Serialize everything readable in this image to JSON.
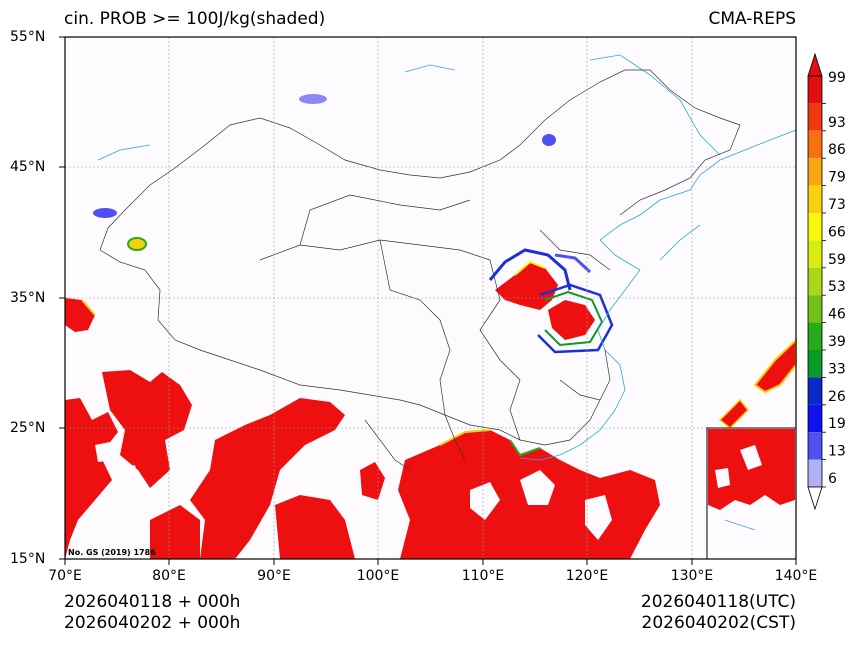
{
  "title_left": "cin. PROB >= 100J/kg(shaded)",
  "title_right": "CMA-REPS",
  "lat_labels": [
    "55°N",
    "45°N",
    "35°N",
    "25°N",
    "15°N"
  ],
  "lon_labels": [
    "70°E",
    "80°E",
    "90°E",
    "100°E",
    "110°E",
    "120°E",
    "130°E",
    "140°E"
  ],
  "map_note": "No. GS (2019) 1786",
  "colorbar": {
    "levels": [
      "6",
      "13",
      "19",
      "26",
      "33",
      "39",
      "46",
      "53",
      "59",
      "66",
      "73",
      "79",
      "86",
      "93",
      "99"
    ],
    "colors": [
      "#b0b0f8",
      "#5050f0",
      "#1010f0",
      "#0a2ac8",
      "#0a9a28",
      "#2aaa18",
      "#72c018",
      "#a8d818",
      "#d8ec10",
      "#f8f810",
      "#f8d010",
      "#f8a810",
      "#f87010",
      "#f03810",
      "#e01010"
    ],
    "under_color": "#ffffff",
    "over_color": "#e01010"
  },
  "footer": {
    "left_line1": "2026040118  +  000h",
    "left_line2": "2026040202  +  000h",
    "right_line1": "2026040118(UTC)",
    "right_line2": "2026040202(CST)"
  }
}
